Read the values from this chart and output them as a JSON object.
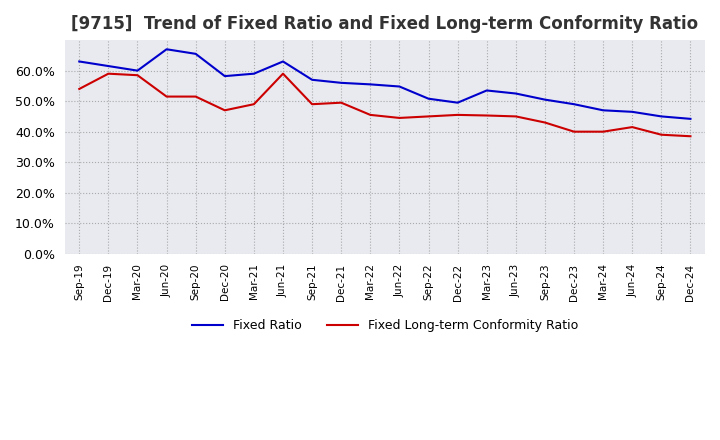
{
  "title": "[9715]  Trend of Fixed Ratio and Fixed Long-term Conformity Ratio",
  "x_labels": [
    "Sep-19",
    "Dec-19",
    "Mar-20",
    "Jun-20",
    "Sep-20",
    "Dec-20",
    "Mar-21",
    "Jun-21",
    "Sep-21",
    "Dec-21",
    "Mar-22",
    "Jun-22",
    "Sep-22",
    "Dec-22",
    "Mar-23",
    "Jun-23",
    "Sep-23",
    "Dec-23",
    "Mar-24",
    "Jun-24",
    "Sep-24",
    "Dec-24"
  ],
  "fixed_ratio": [
    0.63,
    0.615,
    0.6,
    0.67,
    0.655,
    0.582,
    0.59,
    0.63,
    0.57,
    0.56,
    0.555,
    0.548,
    0.508,
    0.495,
    0.535,
    0.525,
    0.505,
    0.49,
    0.47,
    0.465,
    0.45,
    0.442
  ],
  "fixed_lt_ratio": [
    0.54,
    0.59,
    0.585,
    0.515,
    0.515,
    0.47,
    0.49,
    0.59,
    0.49,
    0.495,
    0.455,
    0.445,
    0.45,
    0.455,
    0.453,
    0.45,
    0.43,
    0.4,
    0.4,
    0.415,
    0.39,
    0.385
  ],
  "ylim": [
    0.0,
    0.7
  ],
  "yticks": [
    0.0,
    0.1,
    0.2,
    0.3,
    0.4,
    0.5,
    0.6
  ],
  "line_color_fixed": "#0000cc",
  "line_color_lt": "#cc0000",
  "background_color": "#ffffff",
  "grid_color": "#aaaaaa",
  "title_fontsize": 12,
  "legend_labels": [
    "Fixed Ratio",
    "Fixed Long-term Conformity Ratio"
  ]
}
